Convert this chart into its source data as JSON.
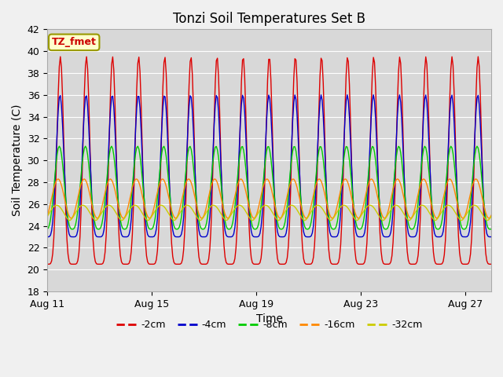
{
  "title": "Tonzi Soil Temperatures Set B",
  "xlabel": "Time",
  "ylabel": "Soil Temperature (C)",
  "ylim": [
    18,
    42
  ],
  "yticks": [
    18,
    20,
    22,
    24,
    26,
    28,
    30,
    32,
    34,
    36,
    38,
    40,
    42
  ],
  "xtick_labels": [
    "Aug 11",
    "Aug 15",
    "Aug 19",
    "Aug 23",
    "Aug 27"
  ],
  "xtick_positions": [
    0,
    4,
    8,
    12,
    16
  ],
  "n_days": 17,
  "n_points_per_day": 24,
  "lines": {
    "-2cm": {
      "color": "#dd0000",
      "amplitude": 9.5,
      "mean": 30.0,
      "phase": 0.0,
      "sharpness": 3.0
    },
    "-4cm": {
      "color": "#0000cc",
      "amplitude": 6.5,
      "mean": 29.5,
      "phase": 0.08,
      "sharpness": 2.5
    },
    "-8cm": {
      "color": "#00cc00",
      "amplitude": 3.8,
      "mean": 27.5,
      "phase": 0.25,
      "sharpness": 1.5
    },
    "-16cm": {
      "color": "#ff8800",
      "amplitude": 1.8,
      "mean": 26.5,
      "phase": 0.55,
      "sharpness": 1.0
    },
    "-32cm": {
      "color": "#cccc00",
      "amplitude": 0.7,
      "mean": 25.2,
      "phase": 0.9,
      "sharpness": 0.8
    }
  },
  "legend_label": "TZ_fmet",
  "legend_label_color": "#cc0000",
  "legend_box_bg": "#ffffcc",
  "legend_box_edge": "#999900",
  "fig_bg_color": "#f0f0f0",
  "plot_bg_color": "#d8d8d8",
  "grid_color": "#ffffff",
  "title_fontsize": 12,
  "axis_fontsize": 10,
  "tick_fontsize": 9
}
